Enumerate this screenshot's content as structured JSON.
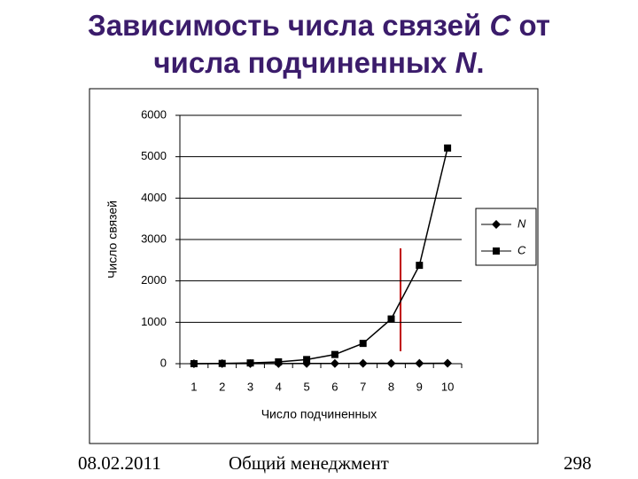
{
  "slide": {
    "title": [
      {
        "text": "Зависимость числа связей ",
        "italic": false
      },
      {
        "text": "C",
        "italic": true
      },
      {
        "text": " от числа подчиненных ",
        "italic": false
      },
      {
        "text": "N",
        "italic": true
      },
      {
        "text": ".",
        "italic": false
      }
    ]
  },
  "chart_data": {
    "type": "line",
    "categories": [
      "1",
      "2",
      "3",
      "4",
      "5",
      "6",
      "7",
      "8",
      "9",
      "10"
    ],
    "series": [
      {
        "name": "N",
        "color": "#000000",
        "marker": "diamond",
        "values": [
          1,
          2,
          3,
          4,
          5,
          6,
          7,
          8,
          9,
          10
        ]
      },
      {
        "name": "C",
        "color": "#000000",
        "marker": "square",
        "values": [
          1,
          6,
          18,
          44,
          100,
          222,
          490,
          1080,
          2376,
          5210
        ]
      }
    ],
    "x_label": "Число подчиненных",
    "y_label": "Число связей",
    "ylim": [
      0,
      6000
    ],
    "yticks": [
      0,
      1000,
      2000,
      3000,
      4000,
      5000,
      6000
    ],
    "grid": true,
    "legend": "right"
  },
  "footer": {
    "date": "08.02.2011",
    "course": "Общий менеджмент",
    "page": "298"
  }
}
